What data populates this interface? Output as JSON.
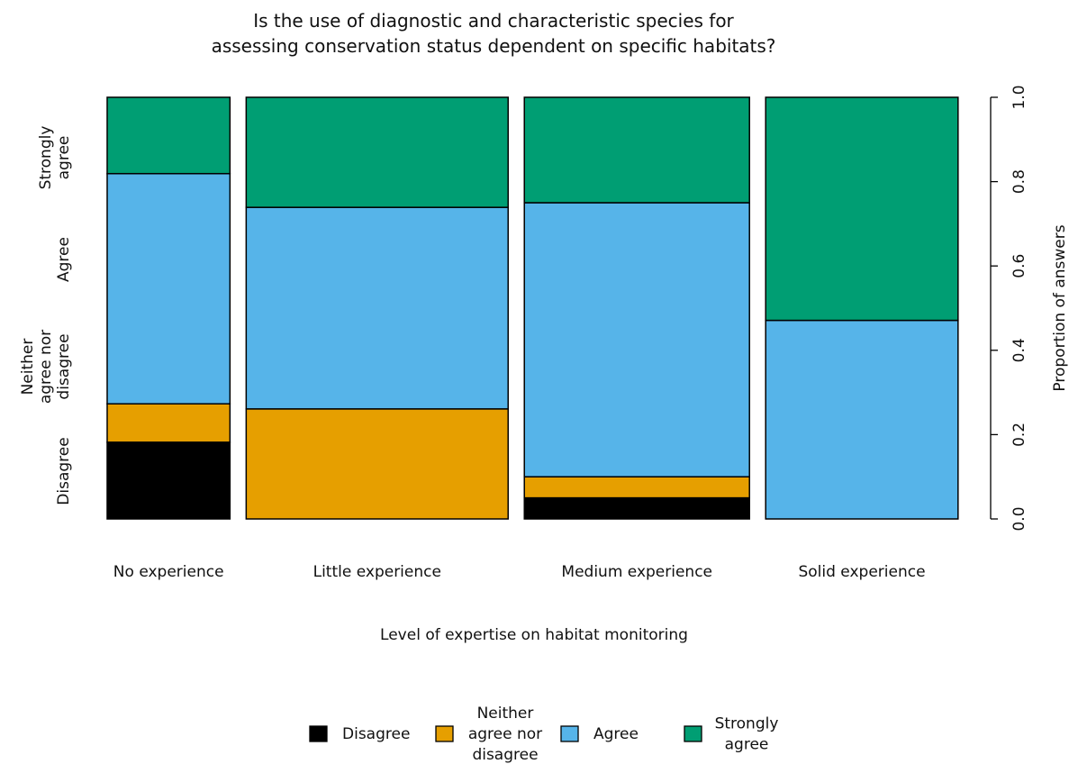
{
  "chart_data": {
    "type": "mosaic",
    "title": [
      "Is the use of diagnostic and characteristic species for",
      "assessing conservation status dependent on specific habitats?"
    ],
    "xlabel": "Level of expertise on habitat monitoring",
    "ylabel_right": "Proportion of answers",
    "yticks": [
      "0.0",
      "0.2",
      "0.4",
      "0.6",
      "0.8",
      "1.0"
    ],
    "ylim": [
      0,
      1
    ],
    "categories": [
      "No experience",
      "Little experience",
      "Medium experience",
      "Solid experience"
    ],
    "column_width_shares": [
      0.15,
      0.32,
      0.275,
      0.235
    ],
    "responses": [
      {
        "key": "disagree",
        "label": [
          "Disagree"
        ],
        "color": "#000000"
      },
      {
        "key": "neither",
        "label": [
          "Neither",
          "agree nor",
          "disagree"
        ],
        "color": "#E69F00"
      },
      {
        "key": "agree",
        "label": [
          "Agree"
        ],
        "color": "#56B4E9"
      },
      {
        "key": "strongly",
        "label": [
          "Strongly",
          "agree"
        ],
        "color": "#009E73"
      }
    ],
    "series": [
      {
        "name": "Disagree",
        "values": [
          0.182,
          0.0,
          0.05,
          0.0
        ]
      },
      {
        "name": "Neither agree nor disagree",
        "values": [
          0.091,
          0.261,
          0.05,
          0.0
        ]
      },
      {
        "name": "Agree",
        "values": [
          0.546,
          0.478,
          0.65,
          0.471
        ]
      },
      {
        "name": "Strongly agree",
        "values": [
          0.181,
          0.261,
          0.25,
          0.529
        ]
      }
    ],
    "left_axis_labels": [
      [
        "Disagree"
      ],
      [
        "Neither",
        "agree nor",
        "disagree"
      ],
      [
        "Agree"
      ],
      [
        "Strongly",
        "agree"
      ]
    ],
    "legend_position": "bottom",
    "grid": false
  }
}
